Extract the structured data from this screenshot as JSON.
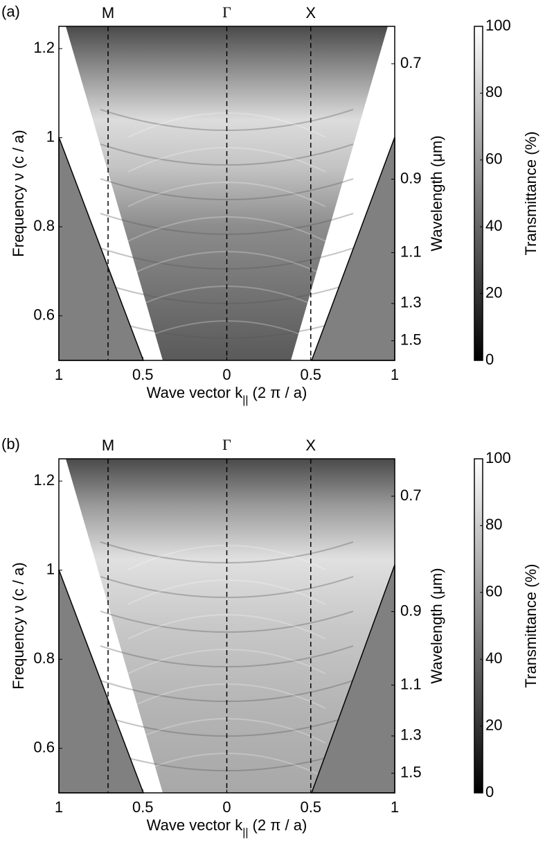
{
  "chart_data": [
    {
      "type": "heatmap",
      "panel_label": "(a)",
      "xlabel": "Wave vector k",
      "xlabel_subscript": "||",
      "xlabel_suffix": "(2 π / a)",
      "ylabel": "Frequency ν (c / a)",
      "y2label": "Wavelength (μm)",
      "xlim": [
        -1,
        1
      ],
      "xticks": [
        {
          "value": -1,
          "label": "1"
        },
        {
          "value": -0.5,
          "label": "0.5"
        },
        0,
        0.5,
        1
      ],
      "ylim": [
        0.5,
        1.25
      ],
      "yticks": [
        0.6,
        0.8,
        1,
        1.2
      ],
      "y2lim": [
        0.653,
        1.632
      ],
      "y2scale": "reciprocal",
      "y2ticks": [
        0.7,
        0.9,
        1.1,
        1.3,
        1.5
      ],
      "markers": [
        {
          "label": "M",
          "x": -0.707
        },
        {
          "label": "Γ",
          "x": 0
        },
        {
          "label": "X",
          "x": 0.5
        }
      ],
      "colorbar": {
        "label": "Transmittance (%)",
        "lim": [
          0,
          100
        ],
        "ticks": [
          0,
          20,
          40,
          60,
          80,
          100
        ]
      }
    },
    {
      "type": "heatmap",
      "panel_label": "(b)",
      "xlabel": "Wave vector k",
      "xlabel_subscript": "||",
      "xlabel_suffix": "(2 π / a)",
      "ylabel": "Frequency ν (c / a)",
      "y2label": "Wavelength (μm)",
      "xlim": [
        -1,
        1
      ],
      "xticks": [
        {
          "value": -1,
          "label": "1"
        },
        {
          "value": -0.5,
          "label": "0.5"
        },
        0,
        0.5,
        1
      ],
      "ylim": [
        0.5,
        1.25
      ],
      "yticks": [
        0.6,
        0.8,
        1,
        1.2
      ],
      "y2lim": [
        0.653,
        1.632
      ],
      "y2scale": "reciprocal",
      "y2ticks": [
        0.7,
        0.9,
        1.1,
        1.3,
        1.5
      ],
      "markers": [
        {
          "label": "M",
          "x": -0.707
        },
        {
          "label": "Γ",
          "x": 0
        },
        {
          "label": "X",
          "x": 0.5
        }
      ],
      "colorbar": {
        "label": "Transmittance (%)",
        "lim": [
          0,
          100
        ],
        "ticks": [
          0,
          20,
          40,
          60,
          80,
          100
        ]
      }
    }
  ]
}
